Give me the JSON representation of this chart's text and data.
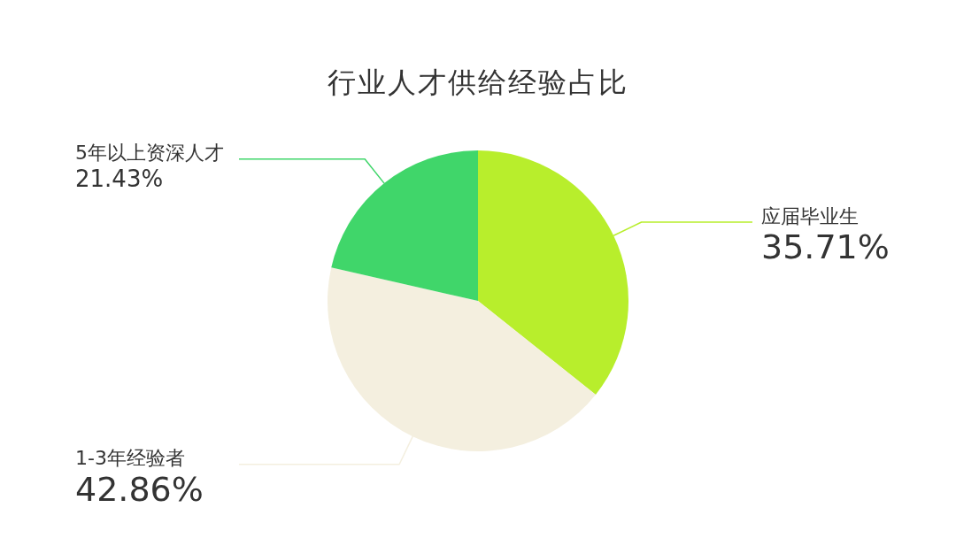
{
  "chart_data": {
    "type": "pie",
    "title": "行业人才供给经验占比",
    "categories": [
      "应届毕业生",
      "1-3年经验者",
      "5年以上资深人才"
    ],
    "values": [
      35.71,
      42.86,
      21.43
    ],
    "value_labels": [
      "35.71%",
      "42.86%",
      "21.43%"
    ],
    "colors": [
      "#b8ee2c",
      "#f4efdf",
      "#40d66a"
    ]
  }
}
